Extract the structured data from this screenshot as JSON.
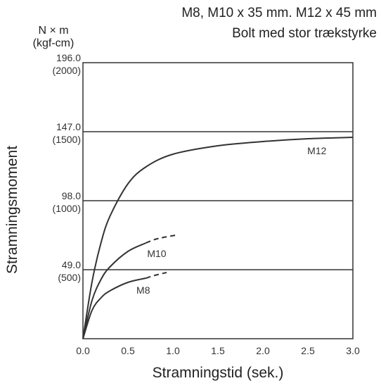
{
  "chart_data": {
    "type": "line",
    "title_lines": [
      "M8, M10 x 35 mm. M12 x 45 mm",
      "Bolt med stor trækstyrke"
    ],
    "y_unit_lines": [
      "N × m",
      "(kgf-cm)"
    ],
    "xlabel": "Stramningstid (sek.)",
    "ylabel": "Stramningsmoment",
    "xlim": [
      0,
      3.0
    ],
    "ylim": [
      0,
      196.0
    ],
    "x_ticks": [
      "0.0",
      "0.5",
      "1.0",
      "1.5",
      "2.0",
      "2.5",
      "3.0"
    ],
    "y_ticks": [
      {
        "value": 49.0,
        "label": "49.0",
        "sub": "(500)"
      },
      {
        "value": 98.0,
        "label": "98.0",
        "sub": "(1000)"
      },
      {
        "value": 147.0,
        "label": "147.0",
        "sub": "(1500)"
      },
      {
        "value": 196.0,
        "label": "196.0",
        "sub": "(2000)"
      }
    ],
    "grid": "horizontal",
    "series": [
      {
        "name": "M12",
        "x": [
          0,
          0.1,
          0.2,
          0.3,
          0.5,
          0.7,
          1.0,
          1.5,
          2.0,
          2.5,
          3.0
        ],
        "y": [
          0,
          40,
          68,
          87,
          110,
          122,
          131,
          137,
          140,
          142,
          143
        ]
      },
      {
        "name": "M10",
        "x": [
          0,
          0.1,
          0.2,
          0.3,
          0.5,
          0.7
        ],
        "y": [
          0,
          27,
          42,
          51,
          62,
          68
        ],
        "dashed_x": [
          0.7,
          0.8,
          0.9,
          1.03
        ],
        "dashed_y": [
          68,
          70.5,
          72,
          73.5
        ]
      },
      {
        "name": "M8",
        "x": [
          0,
          0.1,
          0.2,
          0.3,
          0.5,
          0.7
        ],
        "y": [
          0,
          20,
          29,
          34,
          40,
          43
        ],
        "dashed_x": [
          0.7,
          0.8,
          0.93
        ],
        "dashed_y": [
          43,
          45,
          47
        ]
      }
    ]
  }
}
